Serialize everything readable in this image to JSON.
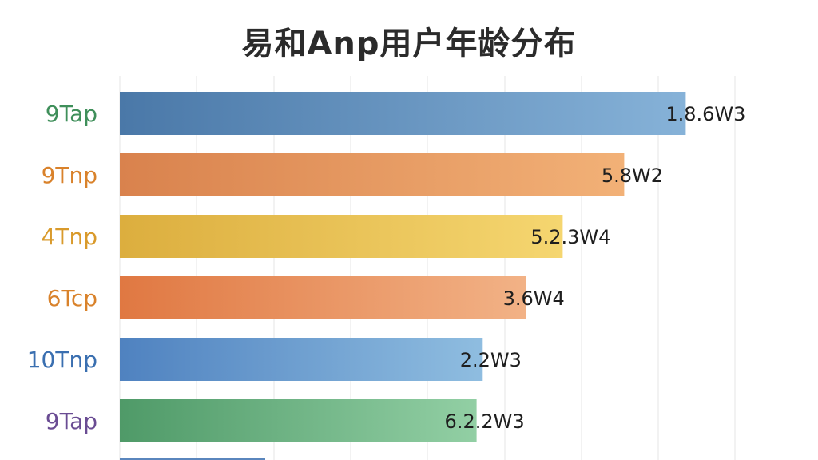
{
  "chart_data": {
    "type": "bar",
    "orientation": "horizontal",
    "title": "易和Anp用户年龄分布",
    "grid": true,
    "xlim": [
      0,
      100
    ],
    "categories": [
      {
        "label": "9Tap",
        "color": "#3f8f5a"
      },
      {
        "label": "9Tnp",
        "color": "#d9822b"
      },
      {
        "label": "4Tnp",
        "color": "#d99a2b"
      },
      {
        "label": "6Tcp",
        "color": "#d9822b"
      },
      {
        "label": "10Tnp",
        "color": "#3a6fb0"
      },
      {
        "label": "9Tap",
        "color": "#6a4c93"
      }
    ],
    "values": [
      92,
      82,
      72,
      66,
      59,
      58
    ],
    "value_labels": [
      "1.8.6W3",
      "5.8W2",
      "5.2.3W4",
      "3.6W4",
      "2.2W3",
      "6.2.2W3"
    ],
    "bar_colors": [
      [
        "#4a78a8",
        "#86b2d8"
      ],
      [
        "#d9824d",
        "#f2b177"
      ],
      [
        "#dcae3e",
        "#f5d670"
      ],
      [
        "#e07842",
        "#f2b286"
      ],
      [
        "#4f82c0",
        "#8fbde0"
      ],
      [
        "#4f9a68",
        "#92cfa4"
      ]
    ]
  }
}
